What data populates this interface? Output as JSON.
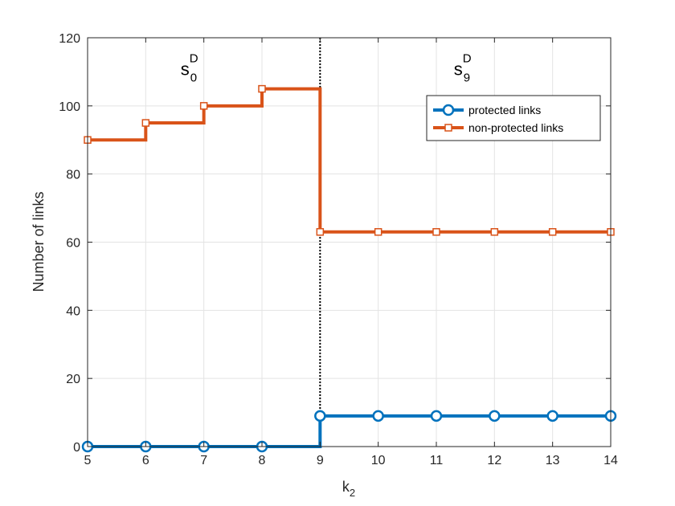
{
  "chart_data": {
    "type": "line",
    "step": true,
    "xlabel": {
      "base": "k",
      "sub": "2"
    },
    "ylabel": "Number of links",
    "xlim": [
      5,
      14
    ],
    "ylim": [
      0,
      120
    ],
    "x_ticks": [
      5,
      6,
      7,
      8,
      9,
      10,
      11,
      12,
      13,
      14
    ],
    "y_ticks": [
      0,
      20,
      40,
      60,
      80,
      100,
      120
    ],
    "grid": true,
    "legend_position": "top-right",
    "x": [
      5,
      6,
      7,
      8,
      9,
      10,
      11,
      12,
      13,
      14
    ],
    "series": [
      {
        "name": "protected links",
        "marker": "circle",
        "color": "#0072BD",
        "values": [
          0,
          0,
          0,
          0,
          9,
          9,
          9,
          9,
          9,
          9
        ]
      },
      {
        "name": "non-protected links",
        "marker": "square",
        "color": "#D95319",
        "values": [
          90,
          95,
          100,
          105,
          63,
          63,
          63,
          63,
          63,
          63
        ]
      }
    ],
    "vline": {
      "x": 9,
      "style": "dotted",
      "color": "#000000"
    },
    "annotations": [
      {
        "base": "s",
        "sup": "D",
        "sub": "0",
        "x": 6.6,
        "y": 109
      },
      {
        "base": "s",
        "sup": "D",
        "sub": "9",
        "x": 11.3,
        "y": 109
      }
    ]
  }
}
